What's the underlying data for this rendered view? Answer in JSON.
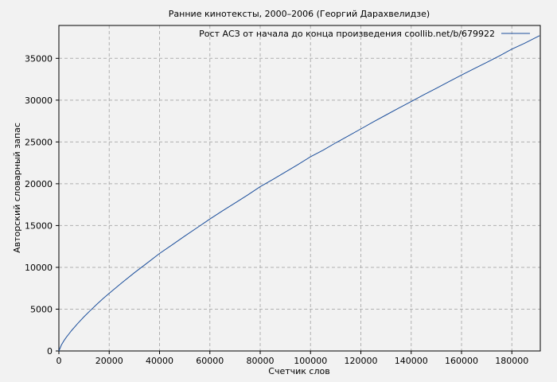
{
  "chart_data": {
    "type": "line",
    "title": "Ранние кинотексты, 2000–2006 (Георгий Дарахвелидзе)",
    "xlabel": "Счетчик слов",
    "ylabel": "Авторский словарный запас",
    "xlim": [
      0,
      191300
    ],
    "ylim": [
      0,
      38930
    ],
    "x_ticks": [
      0,
      20000,
      40000,
      60000,
      80000,
      100000,
      120000,
      140000,
      160000,
      180000
    ],
    "y_ticks": [
      0,
      5000,
      10000,
      15000,
      20000,
      25000,
      30000,
      35000
    ],
    "grid": "dashed",
    "tick_direction": "out",
    "legend_position": "top-right-inside",
    "series": [
      {
        "name": "Рост АСЗ от начала до конца произведения coollib.net/b/679922",
        "color": "#1c4f9c",
        "points": [
          [
            0,
            0
          ],
          [
            1000,
            723
          ],
          [
            2000,
            1218
          ],
          [
            3000,
            1653
          ],
          [
            4000,
            2051
          ],
          [
            5000,
            2428
          ],
          [
            7500,
            3294
          ],
          [
            10000,
            4091
          ],
          [
            12500,
            4840
          ],
          [
            15000,
            5554
          ],
          [
            17500,
            6241
          ],
          [
            20000,
            6898
          ],
          [
            25000,
            8147
          ],
          [
            30000,
            9353
          ],
          [
            35000,
            10503
          ],
          [
            40000,
            11660
          ],
          [
            45000,
            12688
          ],
          [
            50000,
            13731
          ],
          [
            55000,
            14758
          ],
          [
            60000,
            15785
          ],
          [
            65000,
            16764
          ],
          [
            70000,
            17699
          ],
          [
            75000,
            18642
          ],
          [
            80000,
            19650
          ],
          [
            85000,
            20501
          ],
          [
            90000,
            21400
          ],
          [
            95000,
            22296
          ],
          [
            100000,
            23230
          ],
          [
            105000,
            24016
          ],
          [
            110000,
            24887
          ],
          [
            115000,
            25719
          ],
          [
            120000,
            26558
          ],
          [
            125000,
            27402
          ],
          [
            130000,
            28218
          ],
          [
            135000,
            29038
          ],
          [
            140000,
            29826
          ],
          [
            145000,
            30642
          ],
          [
            150000,
            31418
          ],
          [
            155000,
            32214
          ],
          [
            160000,
            33000
          ],
          [
            165000,
            33766
          ],
          [
            170000,
            34513
          ],
          [
            175000,
            35283
          ],
          [
            180000,
            36100
          ],
          [
            185000,
            36796
          ],
          [
            191000,
            37714
          ]
        ]
      }
    ],
    "colors": {
      "background": "#f2f2f2",
      "grid": "#b0b0b0",
      "border": "#000000",
      "text": "#000000"
    }
  }
}
